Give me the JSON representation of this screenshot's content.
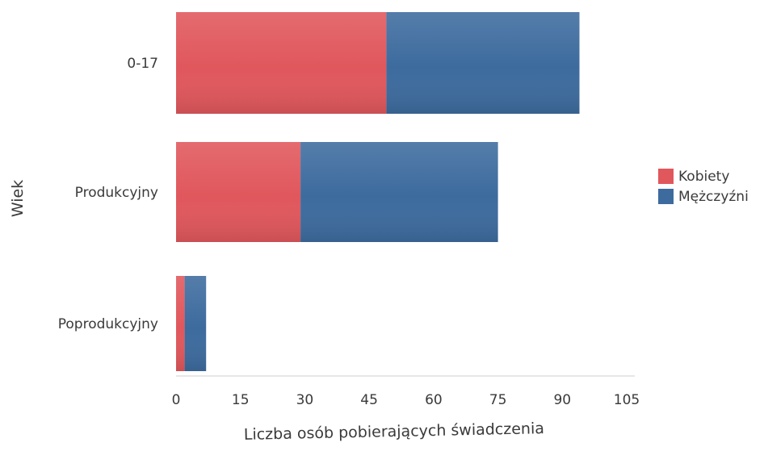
{
  "chart_data": {
    "type": "bar",
    "orientation": "horizontal",
    "stacked": true,
    "categories": [
      "0-17",
      "Produkcyjny",
      "Poprodukcyjny"
    ],
    "series": [
      {
        "name": "Kobiety",
        "values": [
          49,
          29,
          2
        ],
        "color": "#e0575c"
      },
      {
        "name": "Mężczyźni",
        "values": [
          45,
          46,
          5
        ],
        "color": "#3d6b9e"
      }
    ],
    "xlabel": "Liczba osób pobierających świadczenia",
    "ylabel": "Wiek",
    "xlim": [
      0,
      105
    ],
    "xticks": [
      0,
      15,
      30,
      45,
      60,
      75,
      90,
      105
    ],
    "grid": false,
    "legend_position": "right"
  }
}
